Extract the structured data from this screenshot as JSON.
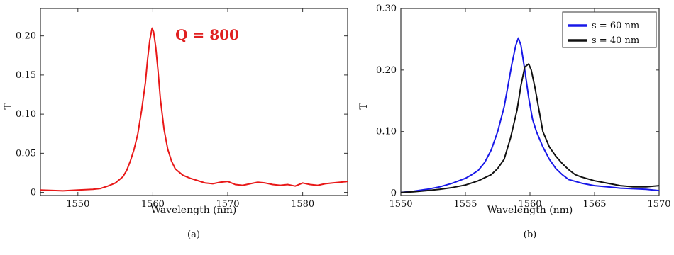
{
  "chart_data": [
    {
      "type": "line",
      "panel_label": "(a)",
      "xlabel": "Wavelength (nm)",
      "ylabel": "T",
      "xlim": [
        1545,
        1586
      ],
      "ylim": [
        -0.004,
        0.235
      ],
      "xticks": [
        1550,
        1560,
        1570,
        1580
      ],
      "yticks": [
        0,
        0.05,
        0.1,
        0.15,
        0.2
      ],
      "ytick_labels": [
        "0",
        "0.05",
        "0.10",
        "0.15",
        "0.20"
      ],
      "grid": false,
      "annotation": {
        "text": "Q = 800",
        "color": "#e02020",
        "x": 1563,
        "y": 0.195
      },
      "series": [
        {
          "color": "#e81818",
          "x": [
            1545,
            1548,
            1550,
            1552,
            1553,
            1554,
            1555,
            1556,
            1556.5,
            1557,
            1557.5,
            1558,
            1558.5,
            1559,
            1559.3,
            1559.6,
            1559.9,
            1560.1,
            1560.4,
            1560.7,
            1561,
            1561.5,
            1562,
            1562.5,
            1563,
            1564,
            1565,
            1566,
            1567,
            1568,
            1569,
            1570,
            1571,
            1572,
            1573,
            1574,
            1575,
            1576,
            1577,
            1578,
            1579,
            1580,
            1581,
            1582,
            1583,
            1584,
            1585,
            1586
          ],
          "y": [
            0.003,
            0.002,
            0.003,
            0.004,
            0.005,
            0.008,
            0.012,
            0.02,
            0.028,
            0.04,
            0.055,
            0.075,
            0.105,
            0.14,
            0.17,
            0.195,
            0.21,
            0.205,
            0.185,
            0.155,
            0.12,
            0.08,
            0.055,
            0.04,
            0.03,
            0.022,
            0.018,
            0.015,
            0.012,
            0.011,
            0.013,
            0.014,
            0.01,
            0.009,
            0.011,
            0.013,
            0.012,
            0.01,
            0.009,
            0.01,
            0.008,
            0.012,
            0.01,
            0.009,
            0.011,
            0.012,
            0.013,
            0.014
          ]
        }
      ]
    },
    {
      "type": "line",
      "panel_label": "(b)",
      "xlabel": "Wavelength (nm)",
      "ylabel": "T",
      "xlim": [
        1550,
        1570
      ],
      "ylim": [
        -0.004,
        0.3
      ],
      "xticks": [
        1550,
        1555,
        1560,
        1565,
        1570
      ],
      "yticks": [
        0,
        0.1,
        0.2,
        0.3
      ],
      "ytick_labels": [
        "0",
        "0.10",
        "0.20",
        "0.30"
      ],
      "grid": false,
      "legend": "top-right",
      "series": [
        {
          "name": "s = 60 nm",
          "color": "#1818e8",
          "x": [
            1550,
            1551,
            1552,
            1553,
            1554,
            1555,
            1555.5,
            1556,
            1556.5,
            1557,
            1557.5,
            1558,
            1558.3,
            1558.6,
            1558.9,
            1559.1,
            1559.3,
            1559.6,
            1559.9,
            1560.2,
            1560.5,
            1561,
            1561.5,
            1562,
            1562.5,
            1563,
            1564,
            1565,
            1566,
            1567,
            1568,
            1569,
            1570
          ],
          "y": [
            0.001,
            0.003,
            0.006,
            0.01,
            0.016,
            0.024,
            0.03,
            0.037,
            0.05,
            0.07,
            0.1,
            0.14,
            0.175,
            0.21,
            0.24,
            0.252,
            0.24,
            0.2,
            0.155,
            0.12,
            0.1,
            0.075,
            0.055,
            0.04,
            0.03,
            0.022,
            0.016,
            0.012,
            0.01,
            0.008,
            0.007,
            0.006,
            0.004
          ]
        },
        {
          "name": "s = 40 nm",
          "color": "#111111",
          "x": [
            1550,
            1551,
            1552,
            1553,
            1554,
            1555,
            1556,
            1557,
            1557.5,
            1558,
            1558.5,
            1559,
            1559.3,
            1559.6,
            1559.9,
            1560.1,
            1560.4,
            1560.7,
            1561,
            1561.5,
            1562,
            1562.5,
            1563,
            1563.5,
            1564,
            1565,
            1566,
            1567,
            1568,
            1569,
            1570
          ],
          "y": [
            0.001,
            0.002,
            0.004,
            0.006,
            0.009,
            0.013,
            0.02,
            0.03,
            0.04,
            0.055,
            0.09,
            0.135,
            0.175,
            0.205,
            0.21,
            0.2,
            0.17,
            0.135,
            0.1,
            0.075,
            0.06,
            0.048,
            0.038,
            0.03,
            0.026,
            0.02,
            0.016,
            0.012,
            0.01,
            0.01,
            0.012
          ]
        }
      ]
    }
  ]
}
